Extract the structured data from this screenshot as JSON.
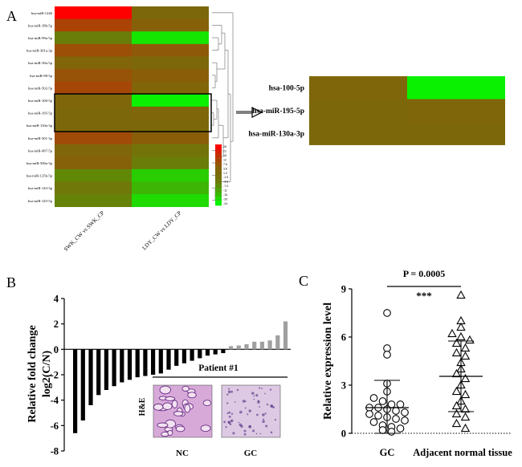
{
  "panels": {
    "a": "A",
    "b": "B",
    "c": "C"
  },
  "chart_data": [
    {
      "id": "A-heatmap",
      "type": "heatmap",
      "title": "",
      "rows": [
        "hsa-miR-1246",
        "hsa-miR-18b-5p",
        "hsa-miR-99a-5p",
        "hsa-miR-301a-3p",
        "hsa-miR-30a-5p",
        "hsa-miR-98-5p",
        "hsa-miR-502-5p",
        "hsa-miR-100-5p",
        "hsa-miR-195-5p",
        "hsa-miR-130a-3p",
        "hsa-miR-501-3p",
        "hsa-miR-497-5p",
        "hsa-miR-500a-3p",
        "hsa-miR-125b-5p",
        "hsa-miR-143-3p",
        "hsa-miR-145-5p"
      ],
      "columns": [
        "SWK_CW vs SWK_CP",
        "LDY_CW vs LDY_CP"
      ],
      "values": [
        [
          26,
          1
        ],
        [
          12,
          4
        ],
        [
          -4,
          -22
        ],
        [
          9,
          6
        ],
        [
          3,
          1
        ],
        [
          8,
          5
        ],
        [
          11,
          3
        ],
        [
          2,
          -24
        ],
        [
          1,
          2
        ],
        [
          1,
          1
        ],
        [
          10,
          5
        ],
        [
          2,
          -2
        ],
        [
          4,
          -4
        ],
        [
          -6,
          -18
        ],
        [
          -3,
          -14
        ],
        [
          -5,
          -20
        ]
      ],
      "color_scale": {
        "min_color": "#00ff00",
        "mid_color": "#7a6a0a",
        "max_color": "#ff0000",
        "range": [
          -26,
          26
        ]
      },
      "legend_ticks": [
        "26",
        "21",
        "16",
        "12",
        "7.6",
        "3.6",
        "1.0",
        "-1.5",
        "-3.6",
        "-7.0",
        "-11",
        "-15",
        "-20",
        "-24"
      ],
      "highlight_rows": [
        "hsa-miR-100-5p",
        "hsa-miR-195-5p",
        "hsa-miR-130a-3p"
      ],
      "inset": {
        "rows": [
          "hsa-100-5p",
          "hsa-miR-195-5p",
          "hsa-miR-130a-3p"
        ],
        "values": [
          [
            2,
            -24
          ],
          [
            1,
            2
          ],
          [
            1,
            1
          ]
        ]
      }
    },
    {
      "id": "B-fold-change",
      "type": "bar",
      "ylabel_line1": "Relative fold change",
      "ylabel_line2": "log2(C/N)",
      "ylim": [
        -8,
        4
      ],
      "yticks": [
        4,
        2,
        0,
        -2,
        -4,
        -6,
        -8
      ],
      "values": [
        -6.6,
        -5.6,
        -4.4,
        -3.6,
        -3.2,
        -2.9,
        -2.6,
        -2.4,
        -2.2,
        -2.1,
        -2.0,
        -1.9,
        -1.6,
        -1.3,
        -1.1,
        -0.9,
        -0.7,
        -0.5,
        -0.4,
        -0.3,
        0.25,
        0.3,
        0.4,
        0.6,
        0.6,
        0.7,
        1.1,
        2.2
      ],
      "bar_colors": {
        "negative": "#000000",
        "positive": "#a0a0a0"
      },
      "inset": {
        "title": "Patient #1",
        "stain": "H&E",
        "labels": [
          "NC",
          "GC"
        ]
      }
    },
    {
      "id": "C-expression",
      "type": "scatter",
      "title": "P = 0.0005",
      "significance": "***",
      "ylabel": "Relative expression level",
      "ylim": [
        0,
        9
      ],
      "yticks": [
        0,
        3,
        6,
        9
      ],
      "categories": [
        "GC",
        "Adjacent normal tissue"
      ],
      "series": [
        {
          "name": "GC",
          "marker": "circle",
          "mean": 1.6,
          "sd": 1.7,
          "values": [
            7.5,
            5.3,
            4.9,
            3.1,
            2.6,
            2.2,
            2.0,
            1.8,
            1.8,
            1.6,
            1.6,
            1.5,
            1.4,
            1.3,
            1.2,
            1.1,
            1.0,
            0.9,
            0.8,
            0.7,
            0.5,
            0.4,
            0.3,
            0.2,
            0.1
          ]
        },
        {
          "name": "Adjacent normal tissue",
          "marker": "triangle",
          "mean": 3.55,
          "sd": 2.2,
          "values": [
            8.6,
            7.0,
            6.6,
            6.2,
            6.0,
            5.8,
            5.6,
            5.3,
            5.0,
            4.8,
            4.4,
            4.0,
            3.7,
            3.4,
            3.0,
            2.6,
            2.4,
            2.0,
            1.7,
            1.5,
            1.2,
            1.0,
            0.6,
            0.3
          ]
        }
      ]
    }
  ]
}
